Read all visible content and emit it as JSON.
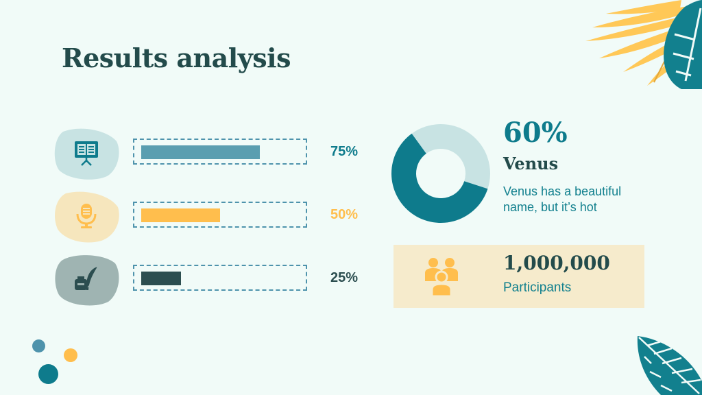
{
  "title": "Results analysis",
  "colors": {
    "teal": "#0e7b8c",
    "light_teal": "#5a9eb0",
    "yellow": "#ffbe4d",
    "dark": "#2c4e50",
    "pale_teal": "#c8e3e3",
    "panel": "#f6ebcc"
  },
  "chart_data": [
    {
      "type": "bar",
      "orientation": "horizontal",
      "series": [
        {
          "icon": "book-presentation-icon",
          "value": 75,
          "label": "75%",
          "color": "#5a9eb0"
        },
        {
          "icon": "microphone-icon",
          "value": 50,
          "label": "50%",
          "color": "#ffbe4d"
        },
        {
          "icon": "ink-quill-icon",
          "value": 25,
          "label": "25%",
          "color": "#2c4e50"
        }
      ],
      "xlim": [
        0,
        100
      ]
    },
    {
      "type": "pie",
      "style": "donut",
      "slices": [
        {
          "value": 60,
          "color": "#0e7b8c"
        },
        {
          "value": 40,
          "color": "#c8e3e3"
        }
      ],
      "label": "60%",
      "name": "Venus",
      "description": "Venus has a beautiful name, but it’s hot"
    }
  ],
  "stat": {
    "icon": "people-group-icon",
    "value": "1,000,000",
    "caption": "Participants"
  }
}
